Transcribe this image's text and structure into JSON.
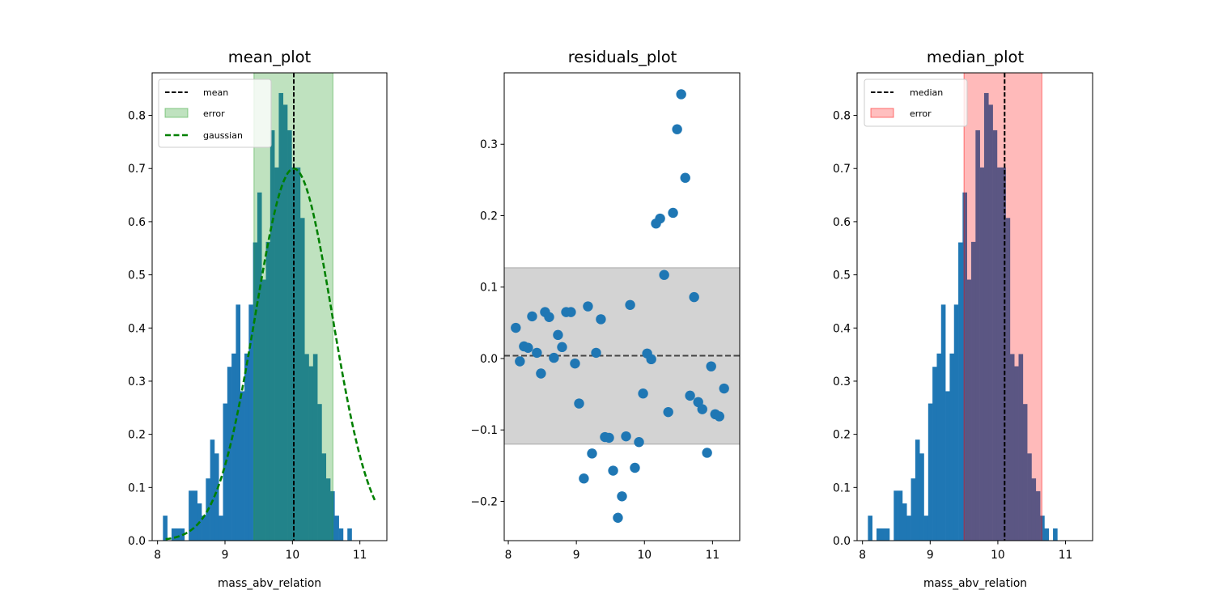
{
  "chart_data": [
    {
      "type": "bar",
      "title": "mean_plot",
      "xlabel": "mass_abv_relation",
      "ylabel": "",
      "xlim": [
        7.92,
        11.4
      ],
      "ylim": [
        0,
        0.88
      ],
      "xticks": [
        8,
        9,
        10,
        11
      ],
      "yticks": [
        0.0,
        0.1,
        0.2,
        0.3,
        0.4,
        0.5,
        0.6,
        0.7,
        0.8
      ],
      "ytick_labels": [
        "0.0",
        "0.1",
        "0.2",
        "0.3",
        "0.4",
        "0.5",
        "0.6",
        "0.7",
        "0.8"
      ],
      "bin_start": 8.08,
      "bin_width": 0.0636,
      "values": [
        0.047,
        0.0,
        0.023,
        0.023,
        0.023,
        0.0,
        0.094,
        0.094,
        0.07,
        0.047,
        0.117,
        0.19,
        0.164,
        0.047,
        0.258,
        0.327,
        0.352,
        0.444,
        0.281,
        0.352,
        0.444,
        0.561,
        0.655,
        0.491,
        0.562,
        0.772,
        0.702,
        0.842,
        0.82,
        0.772,
        0.702,
        0.702,
        0.607,
        0.351,
        0.328,
        0.351,
        0.257,
        0.164,
        0.117,
        0.093,
        0.047,
        0.023,
        0.0,
        0.023
      ],
      "mean": 10.02,
      "error_band": [
        9.43,
        10.6
      ],
      "gaussian": {
        "mu": 10.02,
        "sigma": 0.57,
        "peak": 0.7,
        "x_range": [
          8.12,
          11.22
        ]
      },
      "legend": [
        "mean",
        "error",
        "gaussian"
      ],
      "legend_position": "upper left",
      "colors": {
        "bars": "#1f77b4",
        "mean": "#000000",
        "band": "#2ca02c",
        "gaussian": "#008000"
      }
    },
    {
      "type": "scatter",
      "title": "residuals_plot",
      "xlabel": "",
      "ylabel": "",
      "xlim": [
        7.94,
        11.4
      ],
      "ylim": [
        -0.255,
        0.4
      ],
      "xticks": [
        8,
        9,
        10,
        11
      ],
      "yticks": [
        -0.2,
        -0.1,
        0.0,
        0.1,
        0.2,
        0.3
      ],
      "ytick_labels": [
        "−0.2",
        "−0.1",
        "0.0",
        "0.1",
        "0.2",
        "0.3"
      ],
      "hline": 0.004,
      "band": [
        -0.12,
        0.127
      ],
      "points": [
        [
          8.11,
          0.043
        ],
        [
          8.17,
          -0.004
        ],
        [
          8.23,
          0.017
        ],
        [
          8.29,
          0.015
        ],
        [
          8.35,
          0.059
        ],
        [
          8.42,
          0.008
        ],
        [
          8.48,
          -0.021
        ],
        [
          8.54,
          0.065
        ],
        [
          8.6,
          0.058
        ],
        [
          8.67,
          0.001
        ],
        [
          8.73,
          0.033
        ],
        [
          8.79,
          0.016
        ],
        [
          8.85,
          0.065
        ],
        [
          8.92,
          0.065
        ],
        [
          8.98,
          -0.007
        ],
        [
          9.04,
          -0.063
        ],
        [
          9.11,
          -0.168
        ],
        [
          9.17,
          0.073
        ],
        [
          9.23,
          -0.133
        ],
        [
          9.29,
          0.008
        ],
        [
          9.36,
          0.055
        ],
        [
          9.42,
          -0.11
        ],
        [
          9.48,
          -0.111
        ],
        [
          9.54,
          -0.157
        ],
        [
          9.61,
          -0.223
        ],
        [
          9.67,
          -0.193
        ],
        [
          9.73,
          -0.109
        ],
        [
          9.79,
          0.075
        ],
        [
          9.86,
          -0.153
        ],
        [
          9.92,
          -0.117
        ],
        [
          9.98,
          -0.049
        ],
        [
          10.04,
          0.007
        ],
        [
          10.1,
          -0.001
        ],
        [
          10.17,
          0.189
        ],
        [
          10.23,
          0.196
        ],
        [
          10.29,
          0.117
        ],
        [
          10.35,
          -0.075
        ],
        [
          10.42,
          0.204
        ],
        [
          10.48,
          0.321
        ],
        [
          10.54,
          0.37
        ],
        [
          10.6,
          0.253
        ],
        [
          10.67,
          -0.052
        ],
        [
          10.73,
          0.086
        ],
        [
          10.79,
          -0.061
        ],
        [
          10.85,
          -0.071
        ],
        [
          10.92,
          -0.132
        ],
        [
          10.98,
          -0.011
        ],
        [
          11.04,
          -0.078
        ],
        [
          11.1,
          -0.081
        ],
        [
          11.17,
          -0.042
        ]
      ],
      "colors": {
        "points": "#1f77b4",
        "band": "#d3d3d3",
        "hline": "#444444"
      }
    },
    {
      "type": "bar",
      "title": "median_plot",
      "xlabel": "mass_abv_relation",
      "ylabel": "",
      "xlim": [
        7.92,
        11.4
      ],
      "ylim": [
        0,
        0.88
      ],
      "xticks": [
        8,
        9,
        10,
        11
      ],
      "yticks": [
        0.0,
        0.1,
        0.2,
        0.3,
        0.4,
        0.5,
        0.6,
        0.7,
        0.8
      ],
      "ytick_labels": [
        "0.0",
        "0.1",
        "0.2",
        "0.3",
        "0.4",
        "0.5",
        "0.6",
        "0.7",
        "0.8"
      ],
      "bin_start": 8.08,
      "bin_width": 0.0636,
      "values": [
        0.047,
        0.0,
        0.023,
        0.023,
        0.023,
        0.0,
        0.094,
        0.094,
        0.07,
        0.047,
        0.117,
        0.19,
        0.164,
        0.047,
        0.258,
        0.327,
        0.352,
        0.444,
        0.281,
        0.352,
        0.444,
        0.561,
        0.655,
        0.491,
        0.562,
        0.772,
        0.702,
        0.842,
        0.82,
        0.772,
        0.702,
        0.702,
        0.607,
        0.351,
        0.328,
        0.351,
        0.257,
        0.164,
        0.117,
        0.093,
        0.047,
        0.023,
        0.0,
        0.023
      ],
      "median": 10.1,
      "error_band": [
        9.5,
        10.65
      ],
      "legend": [
        "median",
        "error"
      ],
      "legend_position": "upper left",
      "colors": {
        "bars": "#1f77b4",
        "median": "#000000",
        "band": "#ff0000"
      }
    }
  ]
}
